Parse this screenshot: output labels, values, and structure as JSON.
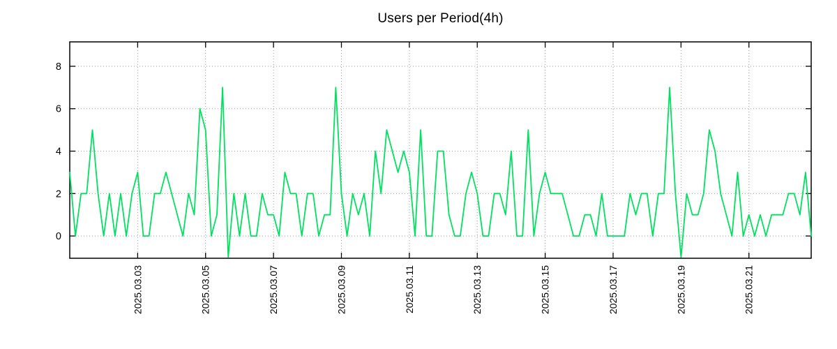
{
  "chart_data": {
    "type": "line",
    "title": "Users per Period(4h)",
    "period_hours": 4,
    "line_color": "#00e060",
    "grid": true,
    "grid_color": "#9a9a9a",
    "frame_color": "#000000",
    "y_ticks": [
      0,
      2,
      4,
      6,
      8
    ],
    "ylim": [
      -1.05,
      9.15
    ],
    "x_tick_labels": [
      "2025.03.03",
      "2025.03.05",
      "2025.03.07",
      "2025.03.09",
      "2025.03.11",
      "2025.03.13",
      "2025.03.15",
      "2025.03.17",
      "2025.03.19",
      "2025.03.21"
    ],
    "x_tick_indices": [
      12,
      24,
      36,
      48,
      60,
      72,
      84,
      96,
      108,
      120
    ],
    "values": [
      3,
      0,
      2,
      2,
      5,
      2,
      0,
      2,
      0,
      2,
      0,
      2,
      3,
      0,
      0,
      2,
      2,
      3,
      2,
      1,
      0,
      2,
      1,
      6,
      5,
      0,
      1,
      7,
      -1,
      2,
      0,
      2,
      0,
      0,
      2,
      1,
      1,
      0,
      3,
      2,
      2,
      0,
      2,
      2,
      0,
      1,
      1,
      7,
      2,
      0,
      2,
      1,
      2,
      0,
      4,
      2,
      5,
      4,
      3,
      4,
      3,
      0,
      5,
      0,
      0,
      4,
      4,
      1,
      0,
      0,
      2,
      3,
      2,
      0,
      0,
      2,
      2,
      1,
      4,
      0,
      0,
      5,
      0,
      2,
      3,
      2,
      2,
      2,
      1,
      0,
      0,
      1,
      1,
      0,
      2,
      0,
      0,
      0,
      0,
      2,
      1,
      2,
      2,
      0,
      2,
      2,
      7,
      2,
      -1,
      2,
      1,
      1,
      2,
      5,
      4,
      2,
      1,
      0,
      3,
      0,
      1,
      0,
      1,
      0,
      1,
      1,
      1,
      2,
      2,
      1,
      3,
      0
    ]
  }
}
